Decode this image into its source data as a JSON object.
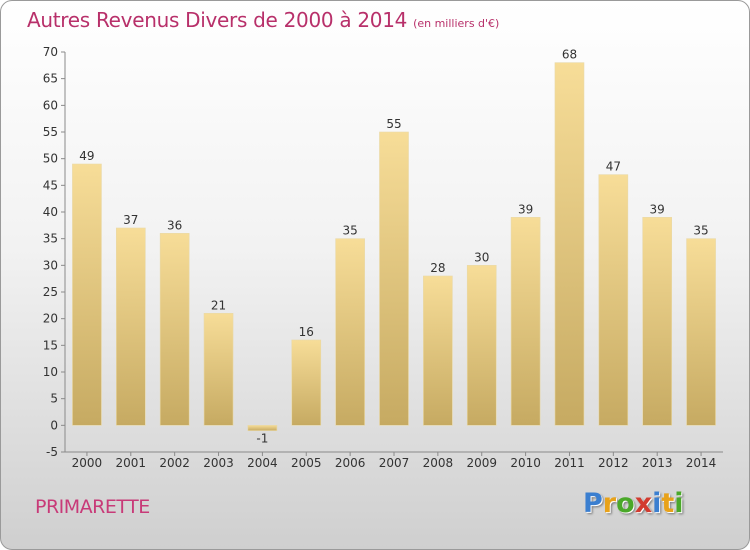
{
  "title": "Autres Revenus Divers de 2000 à 2014",
  "subtitle": "(en milliers d'€)",
  "commune": "PRIMARETTE",
  "logo": {
    "letters": [
      "P",
      "r",
      "o",
      "x",
      "i",
      "t",
      "i"
    ],
    "colors": [
      "#3b7fd0",
      "#e8a21a",
      "#4aa829",
      "#d23b2f",
      "#3b7fd0",
      "#e8a21a",
      "#4aa829"
    ]
  },
  "colors": {
    "bar_top": "#f7dd98",
    "bar_bottom": "#c6aa62",
    "title": "#b8306a"
  },
  "chart_data": {
    "type": "bar",
    "categories": [
      "2000",
      "2001",
      "2002",
      "2003",
      "2004",
      "2005",
      "2006",
      "2007",
      "2008",
      "2009",
      "2010",
      "2011",
      "2012",
      "2013",
      "2014"
    ],
    "values": [
      49,
      37,
      36,
      21,
      -1,
      16,
      35,
      55,
      28,
      30,
      39,
      68,
      47,
      39,
      35
    ],
    "value_labels": [
      "49",
      "37",
      "36",
      "21",
      "-1",
      "16",
      "35",
      "55",
      "28",
      "30",
      "39",
      "68",
      "47",
      "39",
      "35"
    ],
    "title": "Autres Revenus Divers de 2000 à 2014",
    "ylim": [
      -5,
      70
    ],
    "yticks": [
      -5,
      0,
      5,
      10,
      15,
      20,
      25,
      30,
      35,
      40,
      45,
      50,
      55,
      60,
      65,
      70
    ],
    "grid": false,
    "legend": "none"
  }
}
